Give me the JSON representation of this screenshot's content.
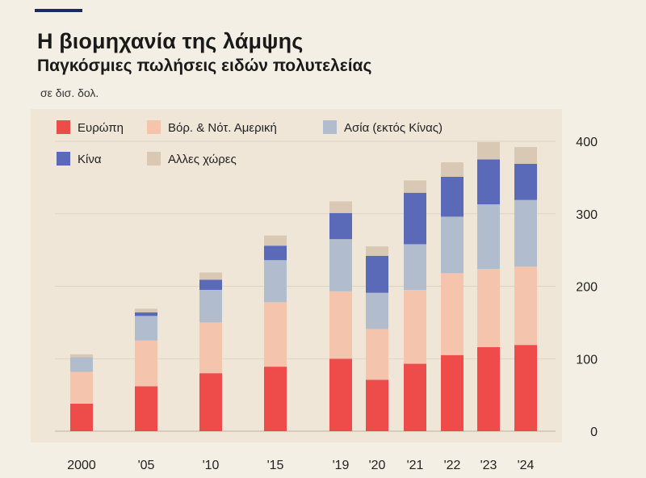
{
  "title": "Η βιομηχανία της λάμψης",
  "subtitle": "Παγκόσμιες πωλήσεις ειδών πολυτελείας",
  "unit_label": "σε δισ. δολ.",
  "colors": {
    "accent": "#1d2a5e",
    "europe": "#ee4b4b",
    "americas": "#f4c4ad",
    "asia": "#b1bccc",
    "china": "#5a6ab8",
    "other": "#d8c8b4"
  },
  "chart_data": {
    "type": "bar",
    "stacked": true,
    "categories": [
      "2000",
      "'05",
      "'10",
      "'15",
      "'19",
      "'20",
      "'21",
      "'22",
      "'23",
      "'24"
    ],
    "series": [
      {
        "name": "Ευρώπη",
        "color_key": "europe",
        "values": [
          38,
          62,
          80,
          89,
          100,
          71,
          93,
          105,
          116,
          119
        ]
      },
      {
        "name": "Βόρ. & Νότ. Αμερική",
        "color_key": "americas",
        "values": [
          44,
          63,
          70,
          89,
          93,
          70,
          102,
          113,
          108,
          108
        ]
      },
      {
        "name": "Ασία (εκτός Κίνας)",
        "color_key": "asia",
        "values": [
          20,
          34,
          45,
          58,
          72,
          50,
          63,
          78,
          89,
          92
        ]
      },
      {
        "name": "Κίνα",
        "color_key": "china",
        "values": [
          0,
          5,
          14,
          20,
          36,
          51,
          71,
          55,
          62,
          50
        ]
      },
      {
        "name": "Αλλες χώρες",
        "color_key": "other",
        "values": [
          4,
          5,
          10,
          14,
          16,
          13,
          17,
          20,
          24,
          23
        ]
      }
    ],
    "y_ticks": [
      0,
      100,
      200,
      300,
      400
    ],
    "ylim": [
      0,
      400
    ],
    "grid": true,
    "y_axis_position": "right",
    "legend_position": "top-left"
  }
}
